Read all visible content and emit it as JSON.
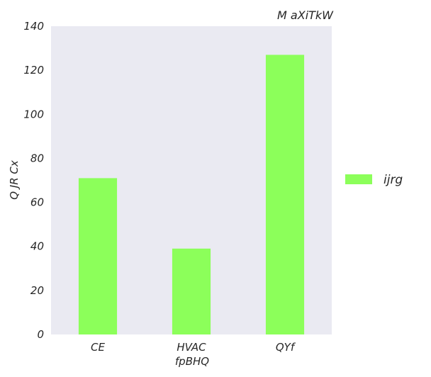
{
  "chart_data": {
    "type": "bar",
    "title": "M aXiTkW",
    "xlabel": "fpBHQ",
    "ylabel": "Q JR Cx",
    "categories": [
      "CE",
      "HVAC",
      "QYf"
    ],
    "series": [
      {
        "name": "ijrg",
        "values": [
          71,
          39,
          127
        ],
        "color": "#8cff5a"
      }
    ],
    "ylim": [
      0,
      140
    ],
    "yticks": [
      0,
      20,
      40,
      60,
      80,
      100,
      120,
      140
    ],
    "grid": false,
    "background_color": "#eaeaf2",
    "legend_position": "right"
  }
}
